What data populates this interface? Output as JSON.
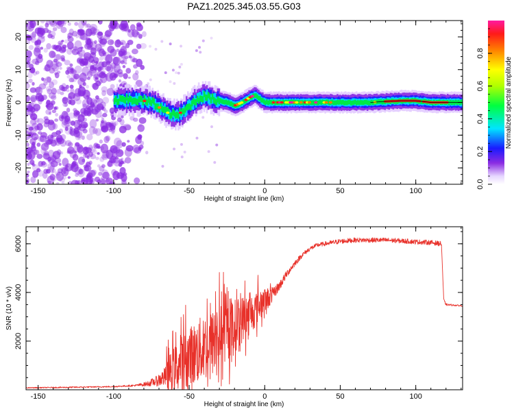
{
  "figure": {
    "title": "PAZ1.2025.345.03.55.G03"
  },
  "colors": {
    "snr_line": "#e8312a",
    "axis": "#000000",
    "scatter_purple": "#8a2be2",
    "ridge": "#000000"
  },
  "chart_data": [
    {
      "id": "spectrogram",
      "type": "heatmap",
      "title": "PAZ1.2025.345.03.55.G03",
      "xlabel": "Height of straight line (km)",
      "ylabel": "Frequency (Hz)",
      "xlim": [
        -158,
        131
      ],
      "ylim": [
        -25,
        25
      ],
      "xticks": [
        -150,
        -100,
        -50,
        0,
        50,
        100
      ],
      "xtick_labels": [
        "-150",
        "-100",
        "-50",
        "0",
        "50",
        "100"
      ],
      "yticks": [
        -20,
        -10,
        0,
        10,
        20
      ],
      "ytick_labels": [
        "-20",
        "-10",
        "0",
        "10",
        "20"
      ],
      "grid": false,
      "colorbar": {
        "label": "Normalized spectral amplitude",
        "range": [
          0,
          1
        ],
        "ticks": [
          0.0,
          0.2,
          0.4,
          0.6,
          0.8
        ],
        "tick_labels": [
          "0.0",
          "0.2",
          "0.4",
          "0.6",
          "0.8"
        ],
        "colormap": "purple-blue-cyan-green-yellow-red-magenta"
      },
      "ridge_line": {
        "x": [
          -100,
          -90,
          -80,
          -75,
          -70,
          -65,
          -60,
          -55,
          -50,
          -45,
          -40,
          -35,
          -30,
          -25,
          -20,
          -15,
          -10,
          -7,
          -5,
          -2,
          0,
          5,
          10,
          20,
          30,
          40,
          50,
          60,
          70,
          80,
          90,
          100,
          110,
          120,
          131
        ],
        "y": [
          0.5,
          0.8,
          0.5,
          0,
          -1.5,
          -3,
          -4,
          -3,
          -1,
          1,
          2,
          1,
          0.5,
          0,
          -1,
          0,
          1.5,
          2.2,
          1.5,
          0.5,
          0,
          0,
          0,
          0,
          0,
          0,
          0,
          0,
          0,
          0.3,
          0.5,
          0.5,
          0,
          0,
          0
        ]
      }
    },
    {
      "id": "snr",
      "type": "line",
      "title": "",
      "xlabel": "Height of straight line (km)",
      "ylabel": "SNR (10 * v/v)",
      "xlim": [
        -158,
        131
      ],
      "ylim": [
        0,
        6700
      ],
      "xticks": [
        -150,
        -100,
        -50,
        0,
        50,
        100
      ],
      "xtick_labels": [
        "-150",
        "-100",
        "-50",
        "0",
        "50",
        "100"
      ],
      "yticks": [
        2000,
        4000,
        6000
      ],
      "ytick_labels": [
        "2000",
        "4000",
        "6000"
      ],
      "grid": false,
      "series": [
        {
          "name": "SNR",
          "envelope": {
            "x": [
              -158,
              -130,
              -100,
              -85,
              -78,
              -72,
              -65,
              -60,
              -55,
              -50,
              -45,
              -40,
              -35,
              -30,
              -25,
              -20,
              -15,
              -10,
              -5,
              0,
              5,
              10,
              15,
              20,
              25,
              30,
              35,
              40,
              45,
              50,
              60,
              70,
              80,
              90,
              100,
              110,
              117,
              118.5,
              120,
              131
            ],
            "mean": [
              80,
              100,
              130,
              180,
              240,
              350,
              550,
              750,
              1000,
              1200,
              1400,
              1600,
              1750,
              2100,
              2300,
              2500,
              2800,
              3000,
              3300,
              3600,
              3900,
              4300,
              4800,
              5200,
              5550,
              5800,
              5950,
              6000,
              6050,
              6100,
              6150,
              6150,
              6150,
              6120,
              6080,
              6050,
              6000,
              3700,
              3500,
              3450
            ],
            "spread": [
              40,
              50,
              50,
              80,
              200,
              400,
              900,
              1300,
              1600,
              1800,
              1900,
              2000,
              2000,
              1900,
              1800,
              1600,
              1400,
              1200,
              1000,
              700,
              500,
              400,
              300,
              250,
              200,
              180,
              180,
              180,
              200,
              200,
              200,
              200,
              200,
              200,
              200,
              200,
              200,
              100,
              80,
              60
            ]
          }
        }
      ]
    }
  ]
}
